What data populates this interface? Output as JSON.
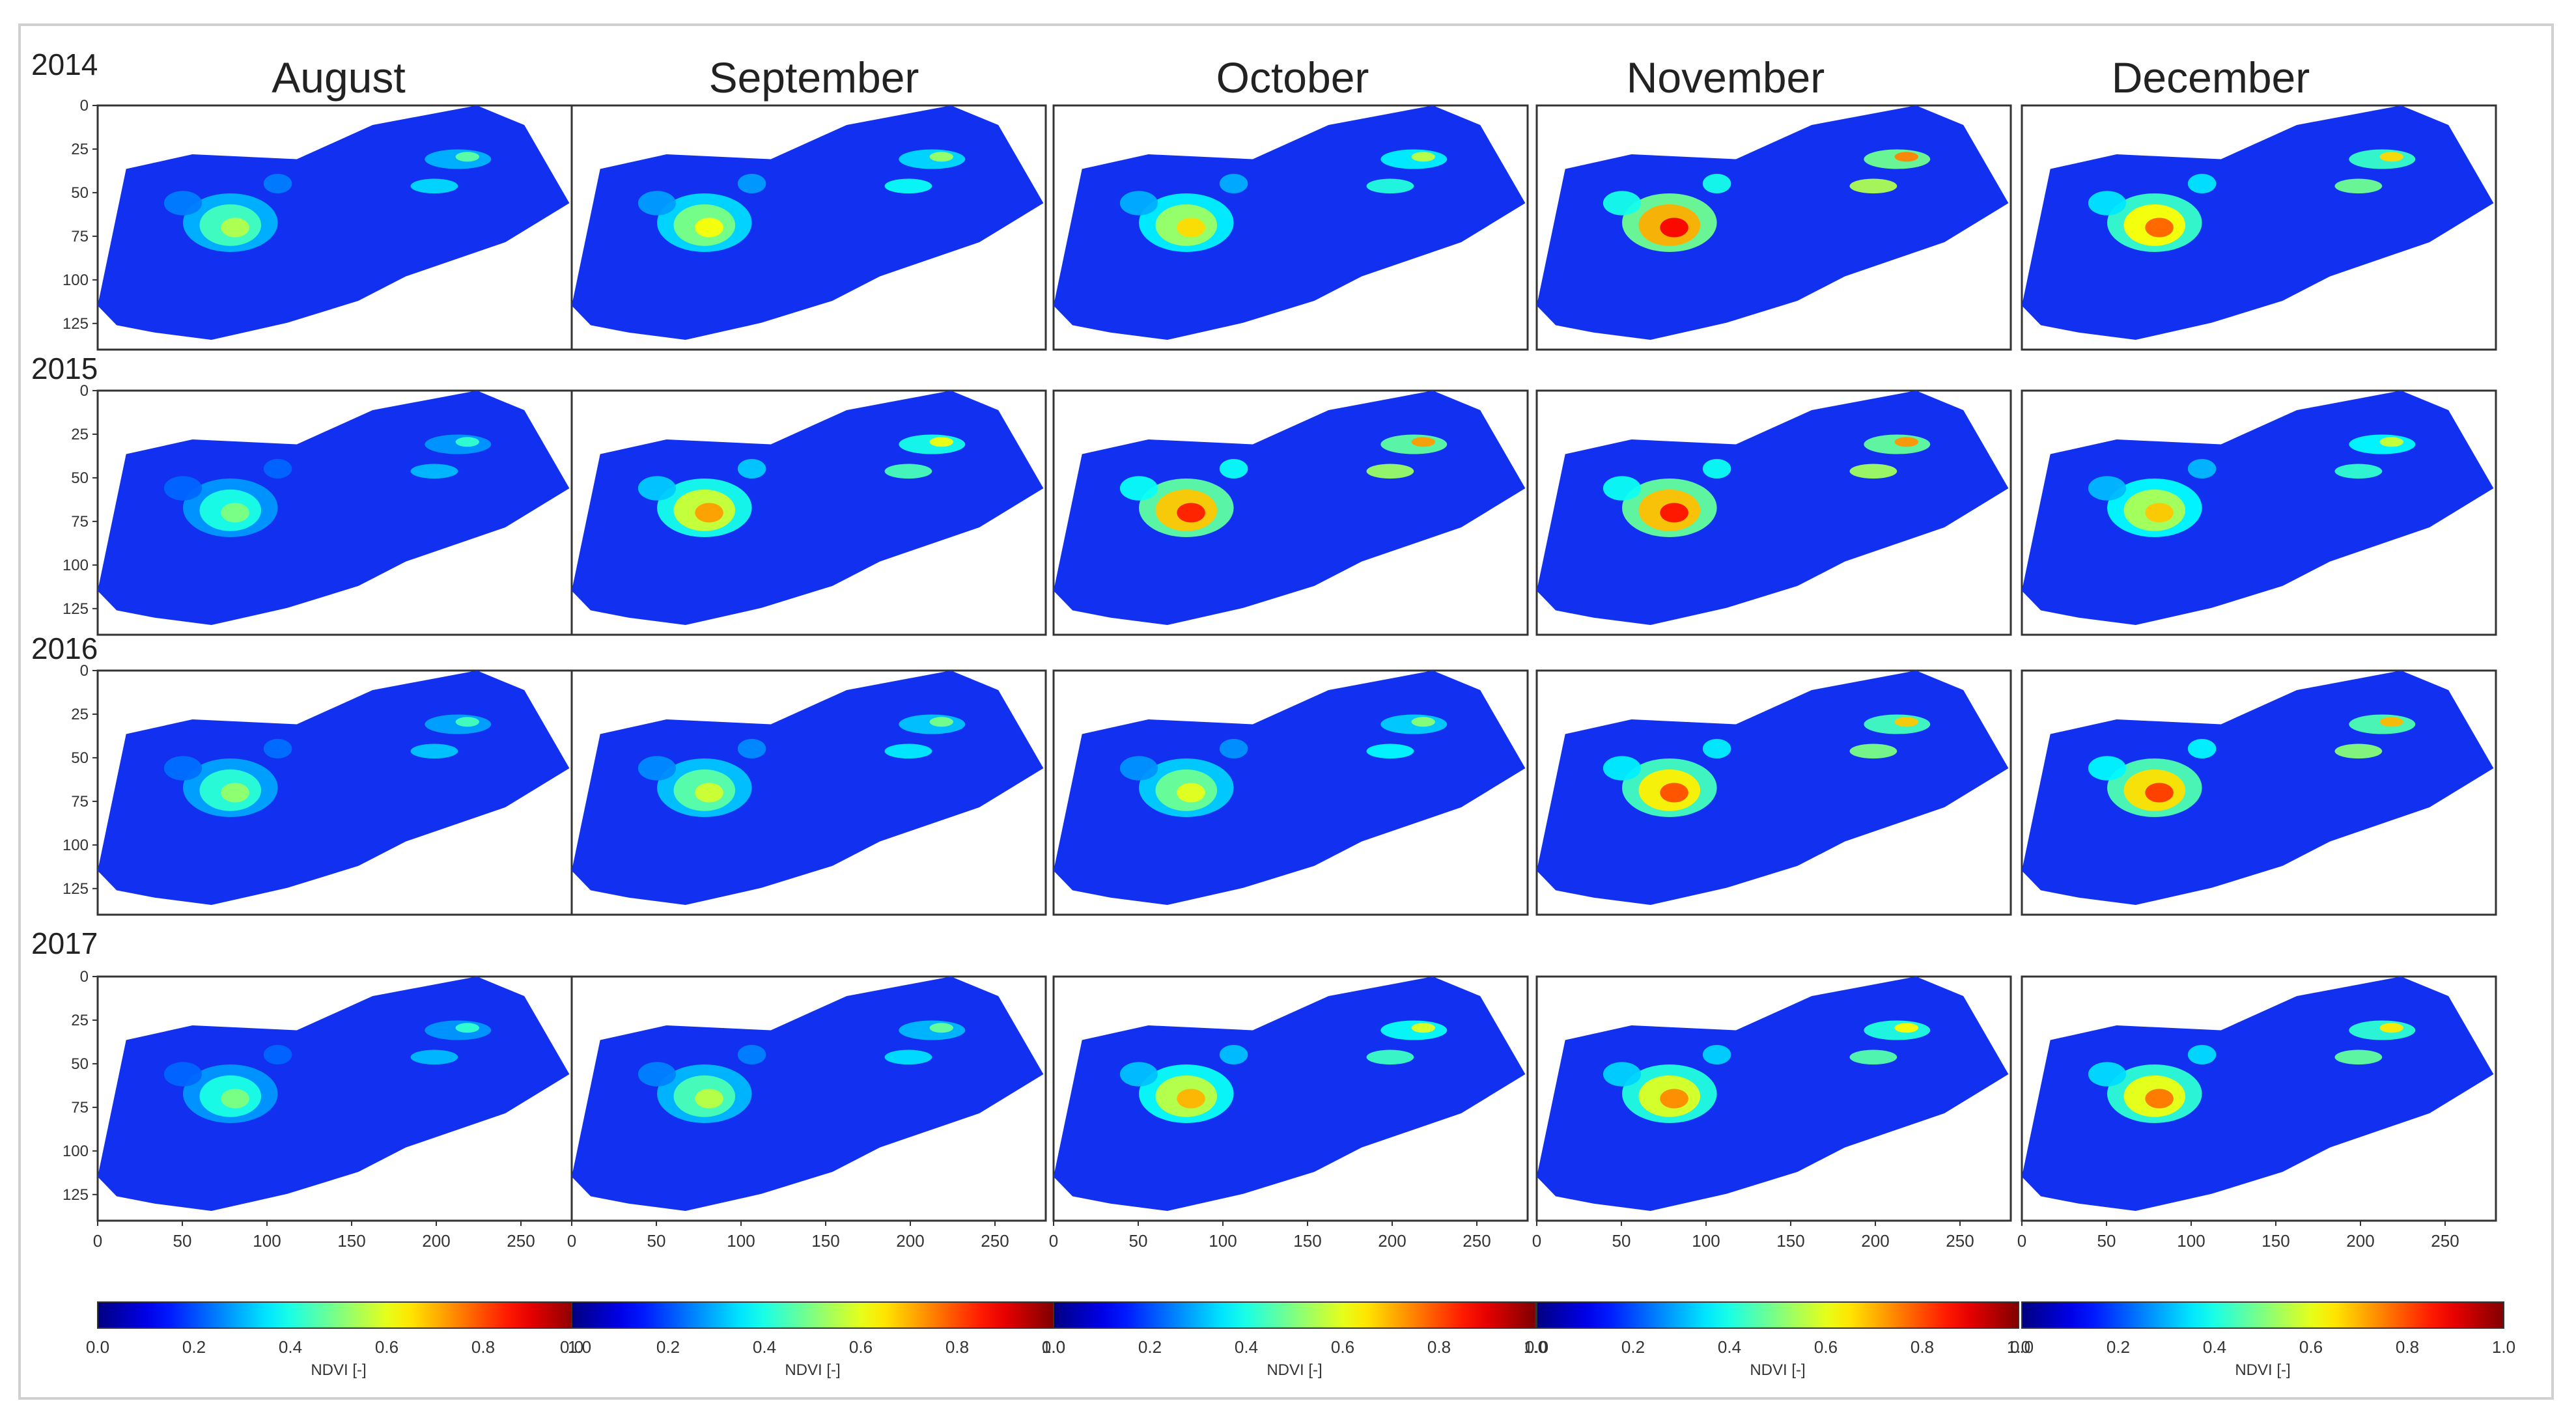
{
  "months": [
    "August",
    "September",
    "October",
    "November",
    "December"
  ],
  "years": [
    "2014",
    "2015",
    "2016",
    "2017"
  ],
  "colorbar_label": "NDVI [-]",
  "chart_data": {
    "type": "heatmap",
    "variable": "NDVI",
    "colormap": "jet",
    "value_range": [
      0.0,
      1.0
    ],
    "y_ticks": [
      0,
      25,
      50,
      75,
      100,
      125
    ],
    "x_ticks": [
      0,
      50,
      100,
      150,
      200,
      250
    ],
    "colorbar_ticks": [
      "0.0",
      "0.2",
      "0.4",
      "0.6",
      "0.8",
      "1.0"
    ],
    "panels": {
      "2014": {
        "August": 0.55,
        "September": 0.62,
        "October": 0.66,
        "November": 0.88,
        "December": 0.78
      },
      "2015": {
        "August": 0.5,
        "September": 0.72,
        "October": 0.85,
        "November": 0.86,
        "December": 0.68
      },
      "2016": {
        "August": 0.52,
        "September": 0.58,
        "October": 0.6,
        "November": 0.8,
        "December": 0.82
      },
      "2017": {
        "August": 0.5,
        "September": 0.56,
        "October": 0.7,
        "November": 0.74,
        "December": 0.76
      }
    },
    "colors": {
      "background": "#0a2bff",
      "field_polygon": "#1130f0"
    }
  }
}
